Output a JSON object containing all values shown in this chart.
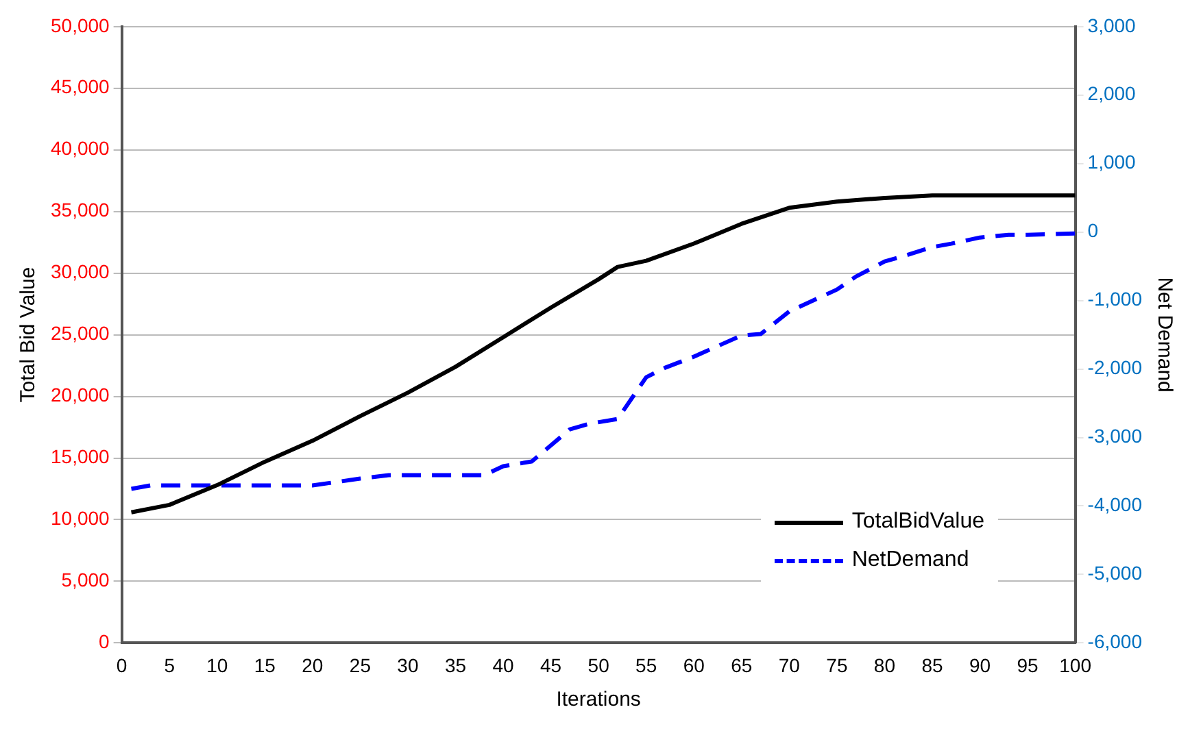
{
  "chart_data": {
    "type": "line",
    "xlabel": "Iterations",
    "ylabel": "Total Bid Value",
    "y2label": "Net Demand",
    "xlim": [
      0,
      100
    ],
    "xticks": [
      0,
      5,
      10,
      15,
      20,
      25,
      30,
      35,
      40,
      45,
      50,
      55,
      60,
      65,
      70,
      75,
      80,
      85,
      90,
      95,
      100
    ],
    "ylim": [
      0,
      50000
    ],
    "yticks": [
      0,
      {
        "value": 5000,
        "label": "5,000"
      },
      {
        "value": 10000,
        "label": "10,000"
      },
      {
        "value": 15000,
        "label": "15,000"
      },
      {
        "value": 20000,
        "label": "20,000"
      },
      {
        "value": 25000,
        "label": "25,000"
      },
      {
        "value": 30000,
        "label": "30,000"
      },
      {
        "value": 35000,
        "label": "35,000"
      },
      {
        "value": 40000,
        "label": "40,000"
      },
      {
        "value": 45000,
        "label": "45,000"
      },
      {
        "value": 50000,
        "label": "50,000"
      }
    ],
    "y2lim": [
      -6000,
      3000
    ],
    "y2ticks": [
      {
        "value": -6000,
        "label": "-6,000"
      },
      {
        "value": -5000,
        "label": "-5,000"
      },
      {
        "value": -4000,
        "label": "-4,000"
      },
      {
        "value": -3000,
        "label": "-3,000"
      },
      {
        "value": -2000,
        "label": "-2,000"
      },
      {
        "value": -1000,
        "label": "-1,000"
      },
      0,
      {
        "value": 1000,
        "label": "1,000"
      },
      {
        "value": 2000,
        "label": "2,000"
      },
      {
        "value": 3000,
        "label": "3,000"
      }
    ],
    "grid": "y",
    "legend": "bottom right",
    "marker": "none",
    "series": [
      {
        "name": "TotalBidValue",
        "color": "#000000",
        "line_style": "solid",
        "x": [
          1,
          5,
          10,
          15,
          20,
          25,
          30,
          35,
          40,
          45,
          50,
          52,
          55,
          60,
          65,
          70,
          75,
          80,
          85,
          90,
          95,
          100
        ],
        "values": [
          10600,
          11200,
          12800,
          14700,
          16400,
          18400,
          20300,
          22400,
          24800,
          27200,
          29500,
          30500,
          31000,
          32400,
          34000,
          35300,
          35800,
          36100,
          36300,
          36300,
          36300,
          36300
        ]
      },
      {
        "name": "NetDemand",
        "color": "#0000ff",
        "line_style": "dashed",
        "axis": "y2",
        "x": [
          1,
          3,
          10,
          15,
          20,
          25,
          28,
          38,
          40,
          43,
          47,
          49,
          52,
          55,
          57,
          60,
          65,
          67,
          70,
          75,
          77,
          80,
          82,
          85,
          87,
          90,
          93,
          95,
          100
        ],
        "values": [
          -3750,
          -3700,
          -3700,
          -3700,
          -3700,
          -3600,
          -3550,
          -3550,
          -3420,
          -3350,
          -2880,
          -2800,
          -2730,
          -2120,
          -1980,
          -1820,
          -1510,
          -1490,
          -1160,
          -840,
          -650,
          -430,
          -350,
          -220,
          -170,
          -80,
          -40,
          -40,
          -20
        ]
      }
    ]
  }
}
